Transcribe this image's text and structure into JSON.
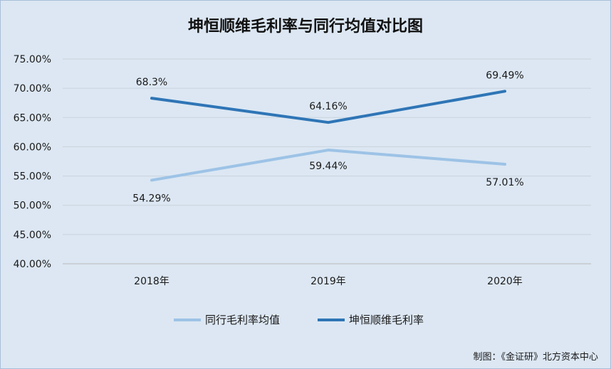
{
  "chart_data": {
    "type": "line",
    "title": "坤恒顺维毛利率与同行均值对比图",
    "categories": [
      "2018年",
      "2019年",
      "2020年"
    ],
    "y_ticks": [
      "40.00%",
      "45.00%",
      "50.00%",
      "55.00%",
      "60.00%",
      "65.00%",
      "70.00%",
      "75.00%"
    ],
    "ylim": [
      40,
      75
    ],
    "grid": true,
    "legend_position": "bottom",
    "series": [
      {
        "name": "同行毛利率均值",
        "values": [
          54.29,
          59.44,
          57.01
        ],
        "labels": [
          "54.29%",
          "59.44%",
          "57.01%"
        ],
        "color": "#9dc3e6"
      },
      {
        "name": "坤恒顺维毛利率",
        "values": [
          68.3,
          64.16,
          69.49
        ],
        "labels": [
          "68.3%",
          "64.16%",
          "69.49%"
        ],
        "color": "#2e75b6"
      }
    ]
  },
  "source": "制图：《金证研》北方资本中心"
}
